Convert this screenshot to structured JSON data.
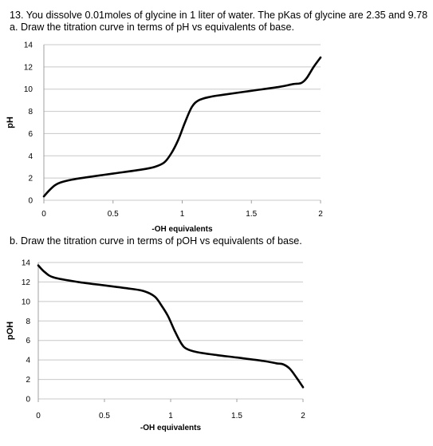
{
  "question": {
    "title": "13. You dissolve 0.01moles of glycine in 1 liter of water. The pKas of glycine are 2.35 and 9.78",
    "part_a": "a. Draw the titration curve in terms of pH vs equivalents of base.",
    "part_b": "b. Draw the titration curve in terms of pOH vs equivalents of base."
  },
  "colors": {
    "curve": "#000000",
    "gridline": "#c8c8c8",
    "axis": "#a0a0a0"
  },
  "chart_data": [
    {
      "type": "line",
      "title": "",
      "xlabel": "-OH equivalents",
      "ylabel": "pH",
      "xlim": [
        0,
        2
      ],
      "ylim": [
        0,
        14
      ],
      "x_ticks": [
        "0",
        "0.5",
        "1",
        "1.5",
        "2"
      ],
      "x_tick_values": [
        0,
        0.5,
        1,
        1.5,
        2
      ],
      "y_ticks": [
        "0",
        "2",
        "4",
        "6",
        "8",
        "10",
        "12",
        "14"
      ],
      "y_tick_values": [
        0,
        2,
        4,
        6,
        8,
        10,
        12,
        14
      ],
      "grid": true,
      "series": [
        {
          "values": [
            [
              0.0,
              0.35
            ],
            [
              0.04,
              0.9
            ],
            [
              0.08,
              1.35
            ],
            [
              0.12,
              1.6
            ],
            [
              0.2,
              1.85
            ],
            [
              0.3,
              2.05
            ],
            [
              0.5,
              2.4
            ],
            [
              0.7,
              2.75
            ],
            [
              0.8,
              3.0
            ],
            [
              0.87,
              3.4
            ],
            [
              0.92,
              4.2
            ],
            [
              0.97,
              5.4
            ],
            [
              1.02,
              7.0
            ],
            [
              1.07,
              8.4
            ],
            [
              1.12,
              9.0
            ],
            [
              1.2,
              9.3
            ],
            [
              1.3,
              9.5
            ],
            [
              1.5,
              9.85
            ],
            [
              1.7,
              10.2
            ],
            [
              1.8,
              10.45
            ],
            [
              1.86,
              10.55
            ],
            [
              1.9,
              11.0
            ],
            [
              1.95,
              12.0
            ],
            [
              2.0,
              12.85
            ]
          ]
        }
      ]
    },
    {
      "type": "line",
      "title": "",
      "xlabel": "-OH equivalents",
      "ylabel": "pOH",
      "xlim": [
        0,
        2
      ],
      "ylim": [
        0,
        14
      ],
      "x_ticks": [
        "0",
        "0.5",
        "1",
        "1.5",
        "2"
      ],
      "x_tick_values": [
        0,
        0.5,
        1,
        1.5,
        2
      ],
      "y_ticks": [
        "0",
        "2",
        "4",
        "6",
        "8",
        "10",
        "12",
        "14"
      ],
      "y_tick_values": [
        0,
        2,
        4,
        6,
        8,
        10,
        12,
        14
      ],
      "grid": true,
      "series": [
        {
          "values": [
            [
              0.0,
              13.7
            ],
            [
              0.05,
              13.0
            ],
            [
              0.12,
              12.45
            ],
            [
              0.3,
              12.0
            ],
            [
              0.5,
              11.65
            ],
            [
              0.7,
              11.3
            ],
            [
              0.8,
              11.05
            ],
            [
              0.88,
              10.5
            ],
            [
              0.93,
              9.6
            ],
            [
              0.98,
              8.5
            ],
            [
              1.03,
              7.0
            ],
            [
              1.08,
              5.7
            ],
            [
              1.12,
              5.15
            ],
            [
              1.2,
              4.8
            ],
            [
              1.35,
              4.5
            ],
            [
              1.5,
              4.25
            ],
            [
              1.7,
              3.9
            ],
            [
              1.8,
              3.65
            ],
            [
              1.85,
              3.55
            ],
            [
              1.9,
              3.1
            ],
            [
              1.95,
              2.2
            ],
            [
              2.0,
              1.2
            ]
          ]
        }
      ]
    }
  ]
}
